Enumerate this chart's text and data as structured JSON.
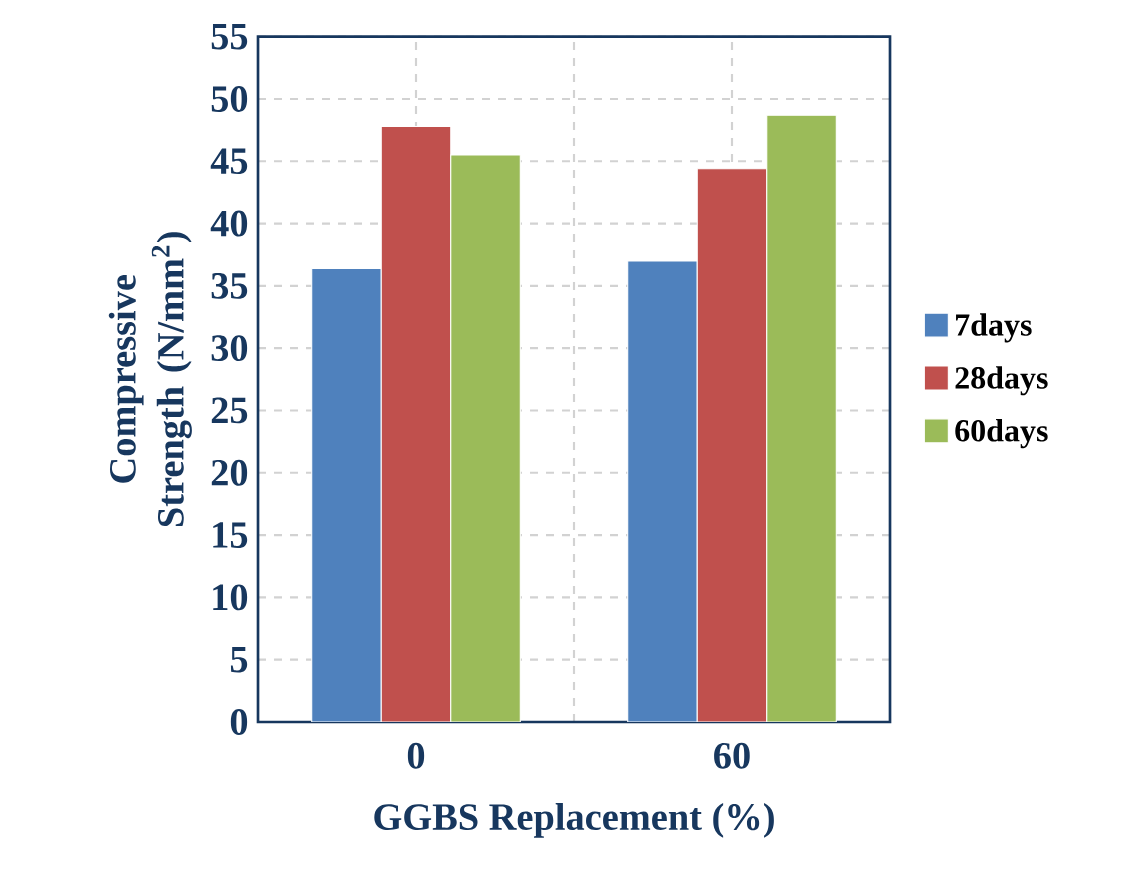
{
  "chart_data": {
    "type": "bar",
    "xlabel": "GGBS Replacement (%)",
    "ylabel": "Compressive Strength (N/mm$^{2}$)",
    "categories": [
      "0",
      "60"
    ],
    "series": [
      {
        "name": "7days",
        "color": "#4f81bd",
        "values": [
          36.4,
          37.0
        ]
      },
      {
        "name": "28days",
        "color": "#c0504d",
        "values": [
          47.8,
          44.4
        ]
      },
      {
        "name": "60days",
        "color": "#9bbb59",
        "values": [
          45.5,
          48.7
        ]
      }
    ],
    "ylim": [
      0,
      55
    ],
    "yticks": [
      0,
      5,
      10,
      15,
      20,
      25,
      30,
      35,
      40,
      45,
      50,
      55
    ],
    "grid": true,
    "legend": "right"
  }
}
